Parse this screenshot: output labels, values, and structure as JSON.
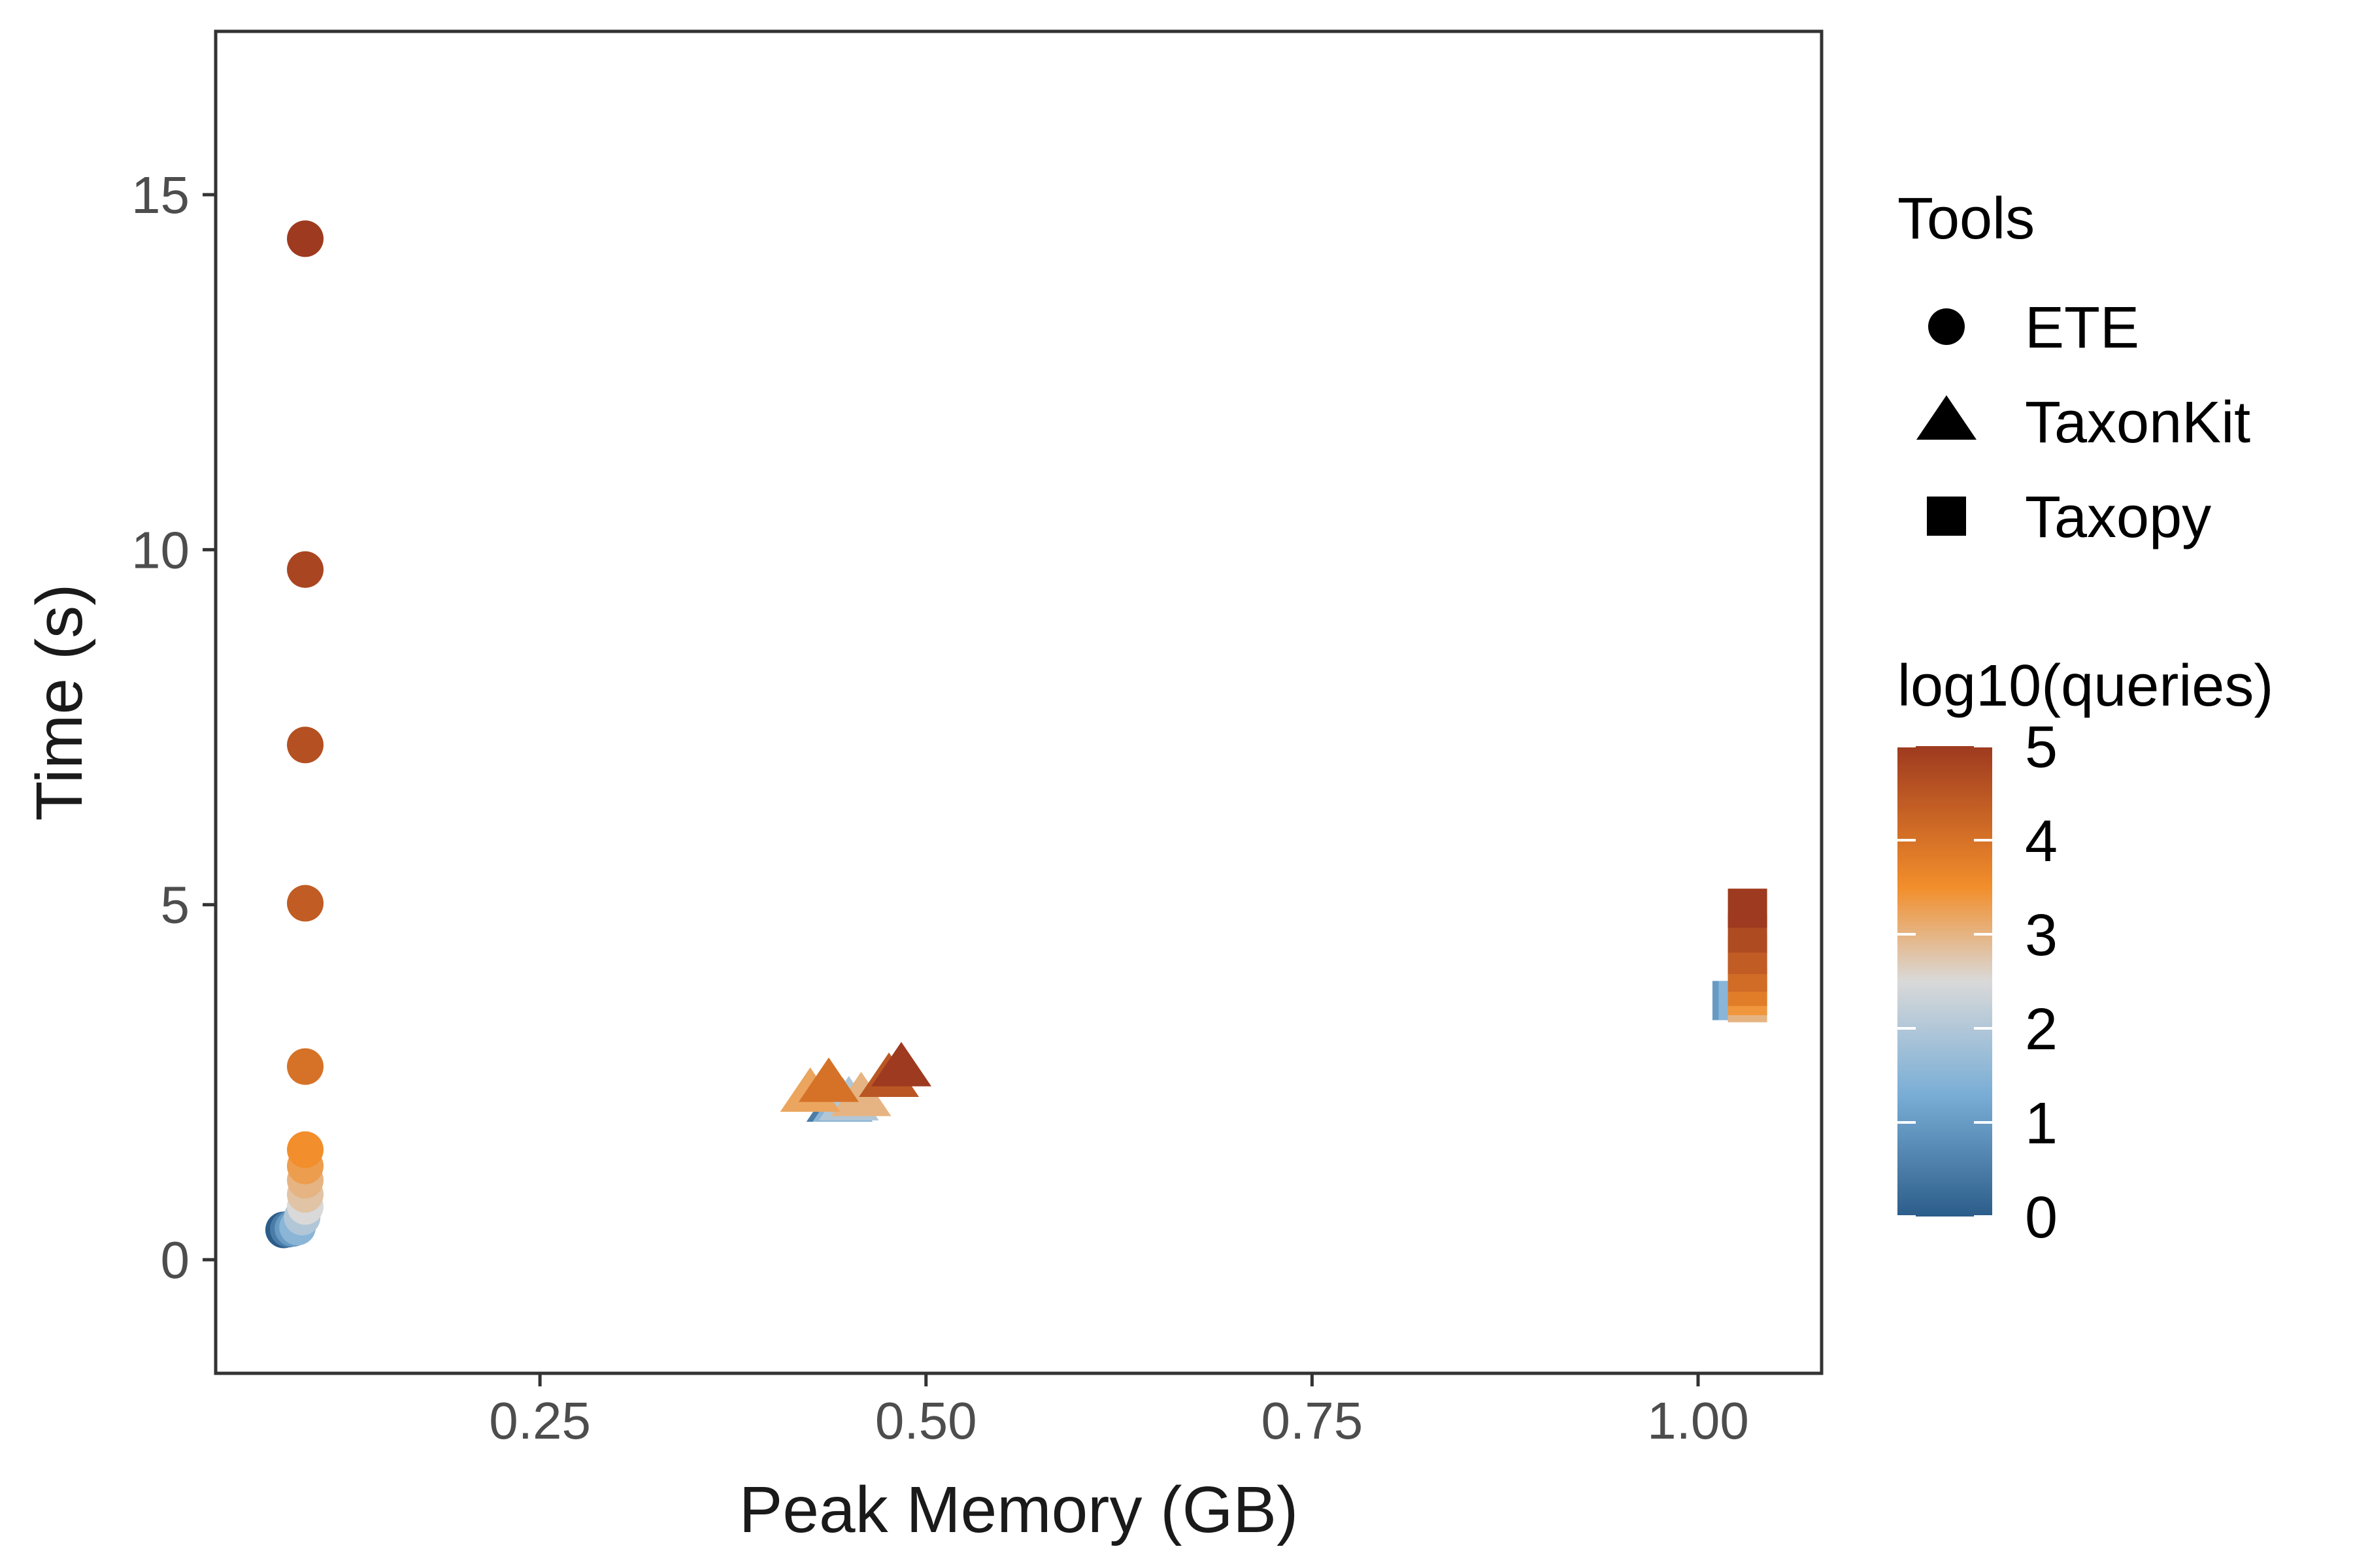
{
  "chart_data": {
    "type": "scatter",
    "xlabel": "Peak Memory (GB)",
    "ylabel": "Time (s)",
    "xlim": [
      0.04,
      1.08
    ],
    "ylim": [
      -1.6,
      17.3
    ],
    "x_ticks": [
      0.25,
      0.5,
      0.75,
      1.0
    ],
    "x_tick_labels": [
      "0.25",
      "0.50",
      "0.75",
      "1.00"
    ],
    "y_ticks": [
      0,
      5,
      10,
      15
    ],
    "y_tick_labels": [
      "0",
      "5",
      "10",
      "15"
    ],
    "grid": false,
    "legend_position": "right",
    "shape_legend": {
      "title": "Tools",
      "entries": [
        {
          "label": "ETE",
          "shape": "circle"
        },
        {
          "label": "TaxonKit",
          "shape": "triangle"
        },
        {
          "label": "Taxopy",
          "shape": "square"
        }
      ]
    },
    "color_legend": {
      "title": "log10(queries)",
      "min": 0,
      "max": 5,
      "ticks": [
        "0",
        "1",
        "2",
        "3",
        "4",
        "5"
      ],
      "colors": {
        "low": "#2c5d8a",
        "mid_low": "#7aaed6",
        "mid": "#d9d9d9",
        "mid_high": "#f28e2b",
        "high": "#9e3a1f"
      }
    },
    "series": [
      {
        "name": "ETE",
        "shape": "circle",
        "points": [
          {
            "x": 0.084,
            "y": 0.42,
            "c": 0.0
          },
          {
            "x": 0.087,
            "y": 0.43,
            "c": 0.5
          },
          {
            "x": 0.09,
            "y": 0.44,
            "c": 1.0
          },
          {
            "x": 0.093,
            "y": 0.46,
            "c": 1.5
          },
          {
            "x": 0.096,
            "y": 0.6,
            "c": 2.0
          },
          {
            "x": 0.098,
            "y": 0.75,
            "c": 2.5
          },
          {
            "x": 0.098,
            "y": 0.92,
            "c": 2.8
          },
          {
            "x": 0.098,
            "y": 1.12,
            "c": 3.0
          },
          {
            "x": 0.098,
            "y": 1.32,
            "c": 3.3
          },
          {
            "x": 0.098,
            "y": 1.55,
            "c": 3.5
          },
          {
            "x": 0.098,
            "y": 2.72,
            "c": 4.0
          },
          {
            "x": 0.098,
            "y": 5.02,
            "c": 4.4
          },
          {
            "x": 0.098,
            "y": 7.25,
            "c": 4.6
          },
          {
            "x": 0.098,
            "y": 9.72,
            "c": 4.8
          },
          {
            "x": 0.098,
            "y": 14.38,
            "c": 5.0
          }
        ]
      },
      {
        "name": "TaxonKit",
        "shape": "triangle",
        "points": [
          {
            "x": 0.442,
            "y": 2.2,
            "c": 0.5
          },
          {
            "x": 0.446,
            "y": 2.2,
            "c": 1.5
          },
          {
            "x": 0.45,
            "y": 2.22,
            "c": 2.0
          },
          {
            "x": 0.458,
            "y": 2.28,
            "c": 3.0
          },
          {
            "x": 0.425,
            "y": 2.34,
            "c": 3.2
          },
          {
            "x": 0.437,
            "y": 2.48,
            "c": 4.0
          },
          {
            "x": 0.476,
            "y": 2.55,
            "c": 4.5
          },
          {
            "x": 0.484,
            "y": 2.7,
            "c": 5.0
          }
        ]
      },
      {
        "name": "Taxopy",
        "shape": "square",
        "points": [
          {
            "x": 1.022,
            "y": 3.65,
            "c": 1.0
          },
          {
            "x": 1.026,
            "y": 3.65,
            "c": 1.5
          },
          {
            "x": 1.032,
            "y": 3.62,
            "c": 3.0
          },
          {
            "x": 1.032,
            "y": 3.72,
            "c": 3.4
          },
          {
            "x": 1.032,
            "y": 3.85,
            "c": 3.8
          },
          {
            "x": 1.032,
            "y": 4.05,
            "c": 4.1
          },
          {
            "x": 1.032,
            "y": 4.3,
            "c": 4.4
          },
          {
            "x": 1.032,
            "y": 4.6,
            "c": 4.7
          },
          {
            "x": 1.032,
            "y": 4.95,
            "c": 5.0
          }
        ]
      }
    ]
  }
}
